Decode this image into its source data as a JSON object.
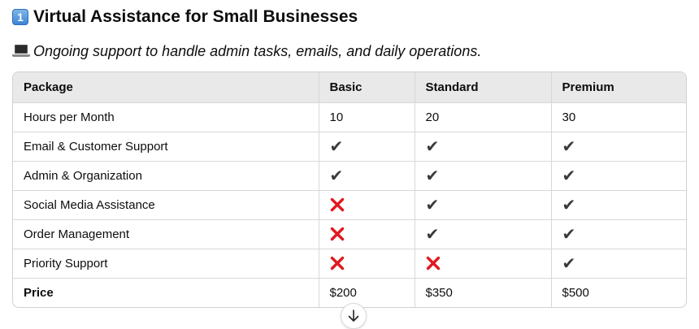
{
  "heading": {
    "number_badge": "1",
    "title": "Virtual Assistance for Small Businesses"
  },
  "subtitle": {
    "icon": "laptop-icon",
    "text": "Ongoing support to handle admin tasks, emails, and daily operations."
  },
  "table": {
    "columns": [
      "Package",
      "Basic",
      "Standard",
      "Premium"
    ],
    "rows": [
      {
        "feature": "Hours per Month",
        "cells": [
          {
            "text": "10"
          },
          {
            "text": "20"
          },
          {
            "text": "30"
          }
        ]
      },
      {
        "feature": "Email & Customer Support",
        "cells": [
          {
            "mark": "check"
          },
          {
            "mark": "check"
          },
          {
            "mark": "check"
          }
        ]
      },
      {
        "feature": "Admin & Organization",
        "cells": [
          {
            "mark": "check"
          },
          {
            "mark": "check"
          },
          {
            "mark": "check"
          }
        ]
      },
      {
        "feature": "Social Media Assistance",
        "cells": [
          {
            "mark": "cross"
          },
          {
            "mark": "check"
          },
          {
            "mark": "check"
          }
        ]
      },
      {
        "feature": "Order Management",
        "cells": [
          {
            "mark": "cross"
          },
          {
            "mark": "check"
          },
          {
            "mark": "check"
          }
        ]
      },
      {
        "feature": "Priority Support",
        "cells": [
          {
            "mark": "cross"
          },
          {
            "mark": "cross"
          },
          {
            "mark": "check"
          }
        ]
      },
      {
        "feature": "Price",
        "bold": true,
        "cells": [
          {
            "text": "$200"
          },
          {
            "text": "$350"
          },
          {
            "text": "$500"
          }
        ]
      }
    ]
  },
  "colors": {
    "check": "#3a3a3a",
    "cross": "#e0191f",
    "header_bg": "#e9e9e9",
    "border": "#d7d7d7"
  },
  "scroll_button": {
    "icon": "arrow-down-icon"
  }
}
